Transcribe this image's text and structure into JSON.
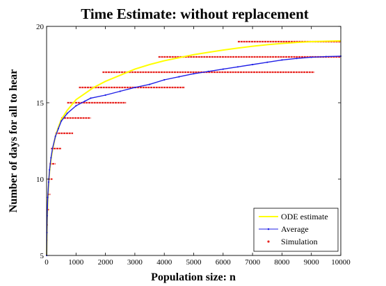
{
  "chart_data": {
    "type": "line",
    "title": "Time Estimate: without replacement",
    "xlabel": "Population size: n",
    "ylabel": "Number of days for all to hear",
    "xlim": [
      0,
      10000
    ],
    "ylim": [
      5,
      20
    ],
    "x_ticks": [
      0,
      1000,
      2000,
      3000,
      4000,
      5000,
      6000,
      7000,
      8000,
      9000,
      10000
    ],
    "y_ticks": [
      5,
      10,
      15,
      20
    ],
    "grid": false,
    "legend": "bottom-right",
    "series": [
      {
        "name": "ODE estimate",
        "color": "#ffff00",
        "kind": "line",
        "x": [
          2,
          10,
          20,
          40,
          70,
          100,
          150,
          200,
          300,
          400,
          500,
          700,
          1000,
          1300,
          1600,
          2000,
          2500,
          3000,
          3500,
          4000,
          4500,
          5000,
          5500,
          6000,
          6500,
          7000,
          7500,
          8000,
          8500,
          9000,
          9500,
          10000
        ],
        "y": [
          5.0,
          6.2,
          7.3,
          8.6,
          9.7,
          10.5,
          11.3,
          11.9,
          12.8,
          13.4,
          13.9,
          14.5,
          15.2,
          15.6,
          16.0,
          16.4,
          16.8,
          17.2,
          17.5,
          17.75,
          17.95,
          18.15,
          18.3,
          18.45,
          18.58,
          18.7,
          18.8,
          18.88,
          18.95,
          19.0,
          19.03,
          19.05
        ]
      },
      {
        "name": "Average",
        "color": "#1e1ee6",
        "kind": "line-markers",
        "x": [
          2,
          10,
          20,
          40,
          70,
          100,
          150,
          200,
          300,
          400,
          500,
          700,
          1000,
          1300,
          1500,
          2000,
          2500,
          3000,
          3500,
          4000,
          4500,
          5000,
          5500,
          6000,
          6500,
          7000,
          7500,
          8000,
          8500,
          9000,
          9500,
          10000
        ],
        "y": [
          5.0,
          6.5,
          7.6,
          8.8,
          9.8,
          10.6,
          11.4,
          12.0,
          12.8,
          13.3,
          13.8,
          14.3,
          14.8,
          15.1,
          15.3,
          15.5,
          15.75,
          16.0,
          16.2,
          16.5,
          16.7,
          16.9,
          17.05,
          17.2,
          17.35,
          17.5,
          17.65,
          17.8,
          17.9,
          17.98,
          18.02,
          18.05
        ]
      },
      {
        "name": "Simulation",
        "color": "#e8231f",
        "kind": "ranges",
        "ranges": [
          {
            "y": 6,
            "x0": 0,
            "x1": 30
          },
          {
            "y": 7,
            "x0": 10,
            "x1": 45
          },
          {
            "y": 8,
            "x0": 15,
            "x1": 80
          },
          {
            "y": 9,
            "x0": 25,
            "x1": 130
          },
          {
            "y": 10,
            "x0": 50,
            "x1": 200
          },
          {
            "y": 11,
            "x0": 100,
            "x1": 300
          },
          {
            "y": 12,
            "x0": 150,
            "x1": 500
          },
          {
            "y": 13,
            "x0": 300,
            "x1": 900
          },
          {
            "y": 14,
            "x0": 500,
            "x1": 1500
          },
          {
            "y": 15,
            "x0": 700,
            "x1": 2700
          },
          {
            "y": 16,
            "x0": 1100,
            "x1": 4700
          },
          {
            "y": 17,
            "x0": 1900,
            "x1": 9100
          },
          {
            "y": 18,
            "x0": 3800,
            "x1": 10000
          },
          {
            "y": 19,
            "x0": 6500,
            "x1": 10000
          }
        ]
      }
    ]
  }
}
